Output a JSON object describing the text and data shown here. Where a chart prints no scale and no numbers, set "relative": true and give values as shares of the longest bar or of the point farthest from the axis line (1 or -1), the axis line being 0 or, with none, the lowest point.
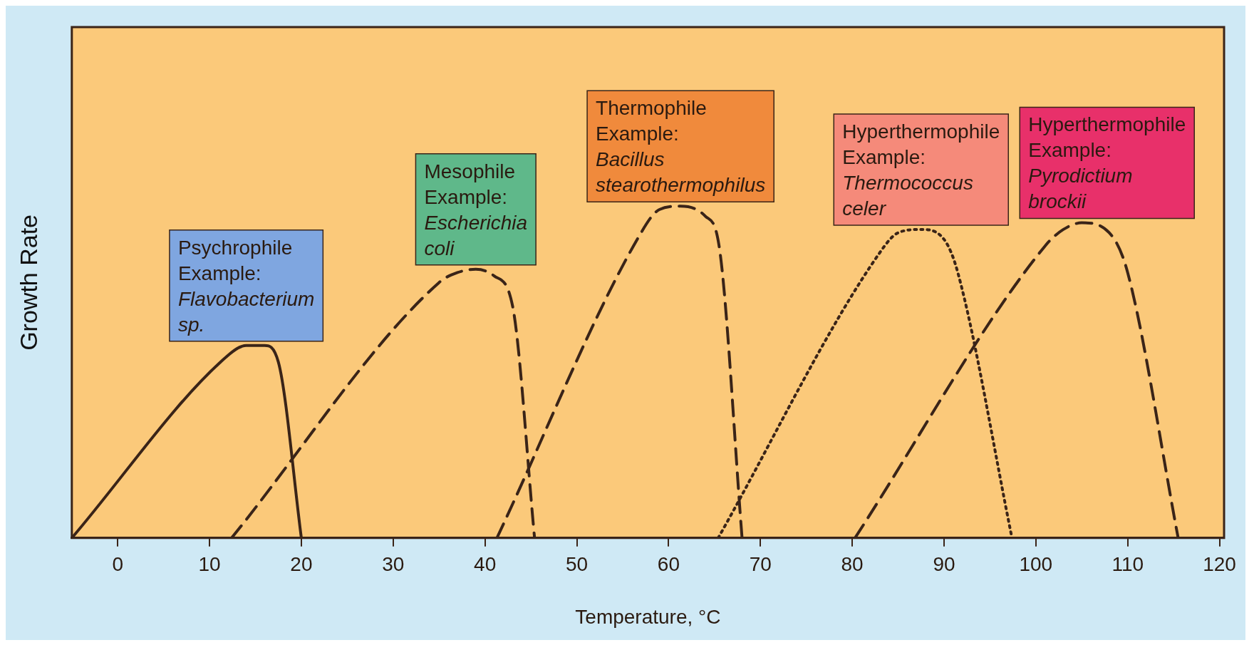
{
  "chart_data": {
    "type": "line",
    "xlabel": "Temperature, °C",
    "ylabel": "Growth Rate",
    "relative": true,
    "tick_labels": "x",
    "xlim": [
      -5,
      120.5
    ],
    "xticks": [
      0,
      10,
      20,
      30,
      40,
      50,
      60,
      70,
      80,
      90,
      100,
      110,
      120
    ],
    "marker": "none",
    "series": [
      {
        "name": "Psychrophile\nExample:\nFlavobacterium\nsp.",
        "color": "#3a2418",
        "line_style": "solid",
        "x": [
          -5,
          12,
          14,
          16,
          17.5,
          20
        ],
        "values": [
          0,
          0.55,
          0.58,
          0.58,
          0.53,
          0
        ]
      },
      {
        "name": "Mesophile\nExample:\nEscherichia\ncoli",
        "color": "#3a2418",
        "line_style": "dashed",
        "x": [
          12.4,
          35,
          37,
          39,
          41,
          43,
          45.4
        ],
        "values": [
          0,
          0.77,
          0.8,
          0.81,
          0.79,
          0.7,
          0
        ]
      },
      {
        "name": "Thermophile\nExample:\nBacillus\nstearothermophilus",
        "color": "#3a2418",
        "line_style": "dashed",
        "x": [
          41.3,
          57,
          59,
          61.3,
          64,
          65.5,
          68
        ],
        "values": [
          0,
          0.92,
          0.99,
          1,
          0.97,
          0.88,
          0
        ]
      },
      {
        "name": "Hyperthermophile\nExample:\nThermococcus\nceler",
        "color": "#3a2418",
        "line_style": "dotted",
        "x": [
          65.4,
          83,
          85,
          87.5,
          90,
          91.5,
          97.4
        ],
        "values": [
          0,
          0.86,
          0.92,
          0.93,
          0.9,
          0.8,
          0
        ]
      },
      {
        "name": "Hyperthermophile\nExample:\nPyrodictium\nbrockii",
        "color": "#3a2418",
        "line_style": "dashed",
        "x": [
          80.3,
          101,
          103,
          105,
          108,
          110,
          115.5
        ],
        "values": [
          0,
          0.88,
          0.93,
          0.95,
          0.92,
          0.8,
          0
        ]
      }
    ]
  }
}
